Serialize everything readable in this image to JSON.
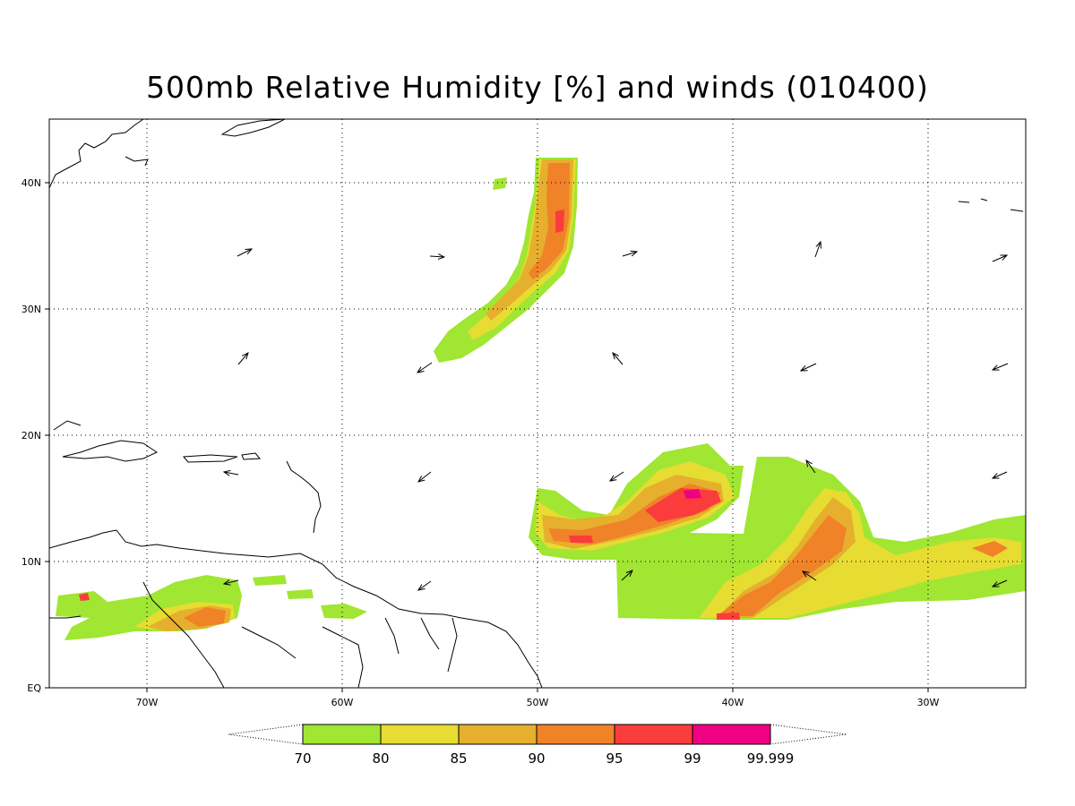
{
  "title": "500mb Relative Humidity [%] and winds (010400)",
  "map": {
    "region": "Tropical/subtropical North Atlantic",
    "lon_range": [
      -75,
      -25
    ],
    "lat_range": [
      0,
      45
    ],
    "gridlines": "dotted",
    "lat_ticks": [
      "EQ",
      "10N",
      "20N",
      "30N",
      "40N"
    ],
    "lon_ticks": [
      "70W",
      "60W",
      "50W",
      "40W",
      "30W"
    ]
  },
  "colorbar": {
    "levels": [
      "70",
      "80",
      "85",
      "90",
      "95",
      "99",
      "99.999"
    ],
    "colors": [
      "#a0e632",
      "#e6dc32",
      "#e6af2d",
      "#f08228",
      "#fa3c3c",
      "#f00082"
    ],
    "extends": "both"
  },
  "wind_arrows_visible": true
}
